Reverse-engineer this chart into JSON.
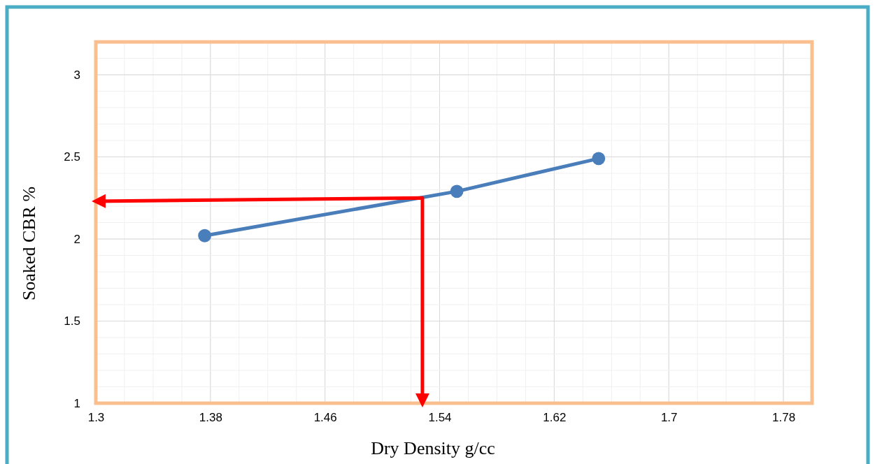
{
  "chart_data": {
    "type": "line",
    "xlabel": "Dry Density g/cc",
    "ylabel": "Soaked CBR %",
    "xlim": [
      1.3,
      1.8
    ],
    "xticks": [
      1.3,
      1.38,
      1.46,
      1.54,
      1.62,
      1.7,
      1.78
    ],
    "ylim": [
      1,
      3.2
    ],
    "yticks": [
      1,
      1.5,
      2,
      2.5,
      3
    ],
    "grid": true,
    "marker": "circle",
    "line_style": "solid",
    "series": [
      {
        "color": "#4a7ebb",
        "x": [
          1.376,
          1.552,
          1.651
        ],
        "values": [
          2.02,
          2.29,
          2.49
        ]
      },
      {
        "color": "#ff0000",
        "marker": "none",
        "x": [
          1.528,
          1.528,
          1.3
        ],
        "values": [
          1.0,
          2.25,
          2.23
        ]
      }
    ]
  }
}
